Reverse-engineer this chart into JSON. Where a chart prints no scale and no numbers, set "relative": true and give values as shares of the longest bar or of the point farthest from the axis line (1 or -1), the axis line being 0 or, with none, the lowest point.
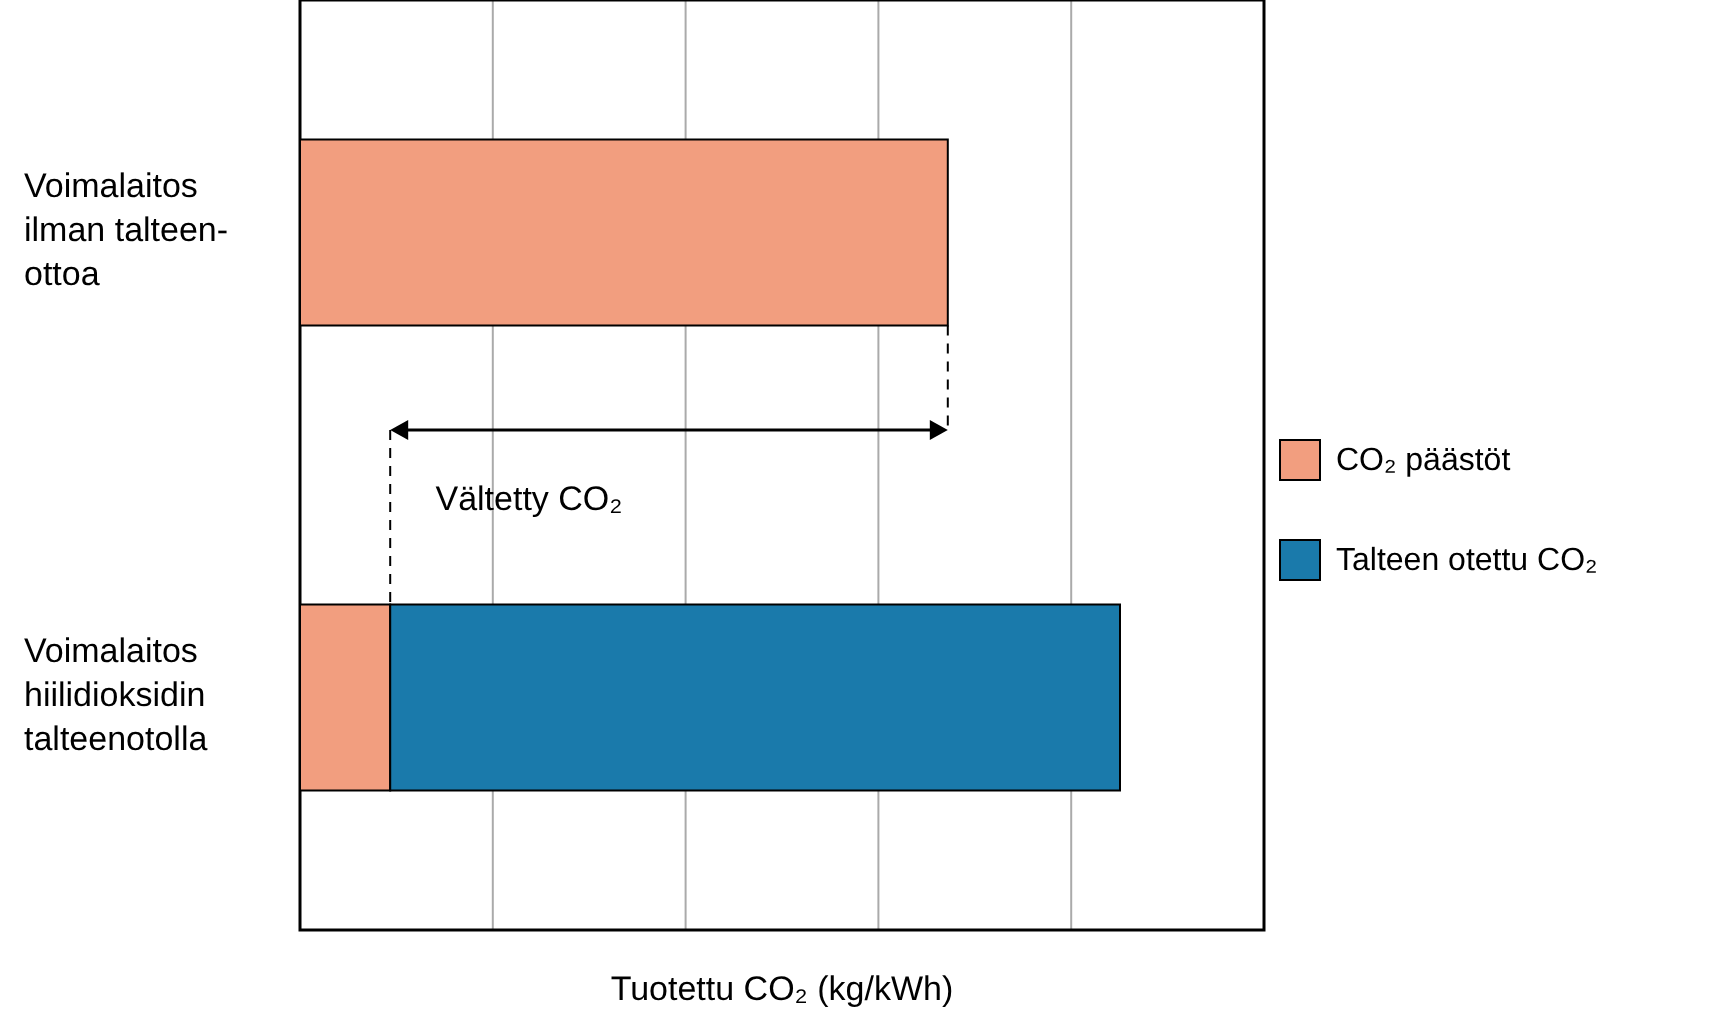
{
  "chart_data": {
    "type": "bar",
    "orientation": "horizontal",
    "stacked": true,
    "relative": true,
    "categories": [
      "Voimalaitos\nilman talteen-\nottoa",
      "Voimalaitos\nhiilidioksidin\ntalteenotolla"
    ],
    "series": [
      {
        "name": "CO₂ päästöt",
        "color": "#f29e7f",
        "values": [
          0.79,
          0.11
        ]
      },
      {
        "name": "Talteen otettu CO₂",
        "color": "#1a7aab",
        "values": [
          null,
          0.89
        ]
      }
    ],
    "xlabel": "Tuotettu CO₂ (kg/kWh)",
    "annotations": [
      "Vältetty CO₂"
    ],
    "grid": "x",
    "legend": "right"
  }
}
